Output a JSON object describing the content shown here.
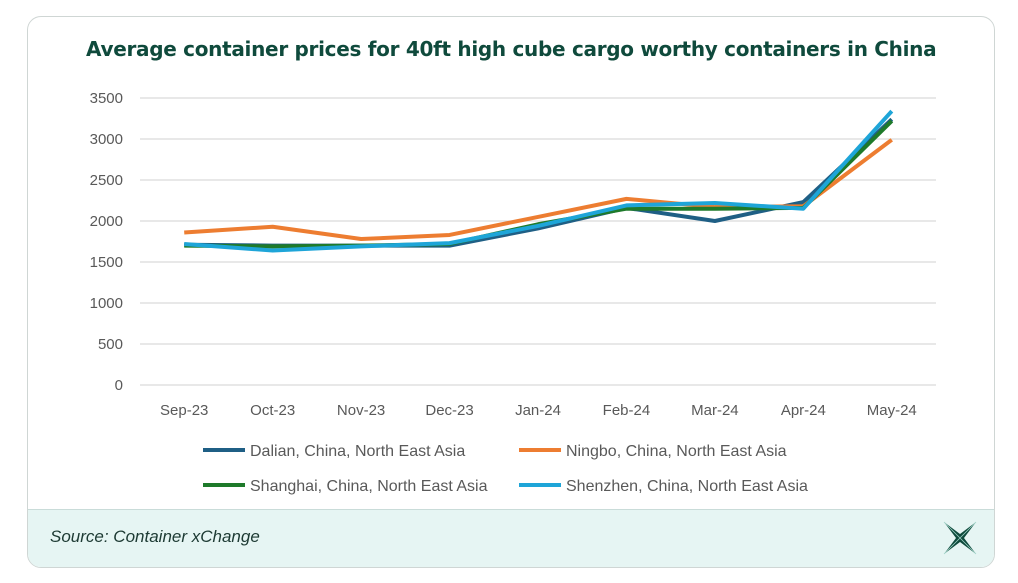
{
  "chart_data": {
    "type": "line",
    "title": "Average container prices for 40ft high cube cargo worthy containers in China",
    "categories": [
      "Sep-23",
      "Oct-23",
      "Nov-23",
      "Dec-23",
      "Jan-24",
      "Feb-24",
      "Mar-24",
      "Apr-24",
      "May-24"
    ],
    "ylim": [
      0,
      3500
    ],
    "yticks": [
      0,
      500,
      1000,
      1500,
      2000,
      2500,
      3000,
      3500
    ],
    "grid": true,
    "legend": "bottom",
    "series": [
      {
        "name": "Dalian, China, North East Asia",
        "color": "#1f5f85",
        "values": [
          1710,
          1700,
          1700,
          1700,
          1910,
          2160,
          2000,
          2230,
          3240
        ]
      },
      {
        "name": "Ningbo, China, North East Asia",
        "color": "#ed7d31",
        "values": [
          1860,
          1930,
          1780,
          1830,
          2050,
          2270,
          2170,
          2180,
          2990
        ]
      },
      {
        "name": "Shanghai, China, North East Asia",
        "color": "#1e7a2a",
        "values": [
          1700,
          1690,
          1700,
          1720,
          1960,
          2150,
          2150,
          2160,
          3220
        ]
      },
      {
        "name": "Shenzhen, China, North East Asia",
        "color": "#1ea5d8",
        "values": [
          1720,
          1640,
          1690,
          1730,
          1940,
          2190,
          2220,
          2150,
          3340
        ]
      }
    ]
  },
  "footer": {
    "source": "Source: Container xChange",
    "logo": "xChange"
  }
}
